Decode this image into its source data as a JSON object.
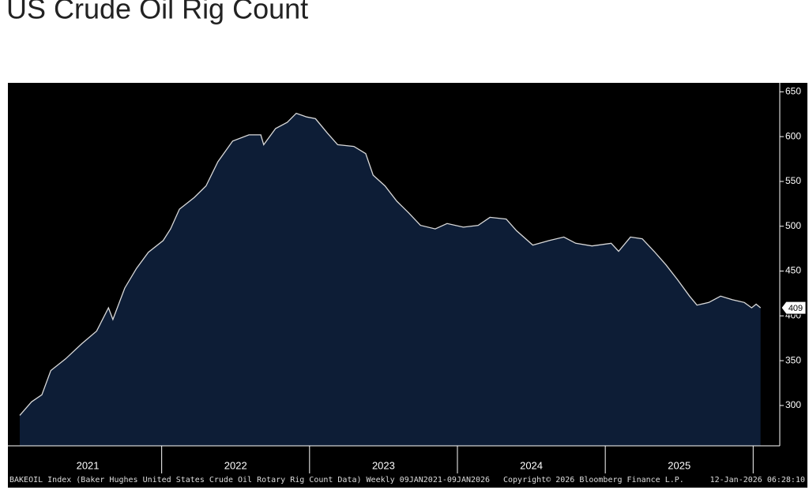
{
  "chart_data": {
    "type": "area",
    "title": "US Crude Oil Rig Count",
    "source": "BAKEOIL Index (Baker Hughes United States Crude Oil Rotary Rig Count Data) Weekly 09JAN2021-09JAN2026",
    "copyright": "Copyright© 2026 Bloomberg Finance L.P.",
    "timestamp": "12-Jan-2026 06:28:10",
    "x": [
      2021.04,
      2021.12,
      2021.19,
      2021.25,
      2021.35,
      2021.46,
      2021.56,
      2021.64,
      2021.67,
      2021.75,
      2021.83,
      2021.91,
      2022.01,
      2022.06,
      2022.12,
      2022.22,
      2022.3,
      2022.38,
      2022.48,
      2022.59,
      2022.67,
      2022.69,
      2022.77,
      2022.85,
      2022.91,
      2022.98,
      2023.04,
      2023.12,
      2023.19,
      2023.3,
      2023.38,
      2023.43,
      2023.51,
      2023.59,
      2023.67,
      2023.75,
      2023.85,
      2023.93,
      2024.04,
      2024.14,
      2024.22,
      2024.33,
      2024.4,
      2024.51,
      2024.62,
      2024.72,
      2024.8,
      2024.91,
      2025.04,
      2025.09,
      2025.17,
      2025.25,
      2025.33,
      2025.41,
      2025.49,
      2025.57,
      2025.62,
      2025.7,
      2025.78,
      2025.86,
      2025.94,
      2025.99,
      2026.02,
      2026.05
    ],
    "values": [
      289,
      304,
      312,
      339,
      352,
      369,
      383,
      409,
      396,
      431,
      453,
      471,
      484,
      497,
      519,
      532,
      545,
      572,
      595,
      602,
      602,
      591,
      609,
      616,
      626,
      622,
      620,
      604,
      591,
      589,
      581,
      557,
      545,
      528,
      515,
      501,
      497,
      503,
      499,
      501,
      510,
      508,
      495,
      479,
      484,
      488,
      481,
      478,
      481,
      472,
      488,
      486,
      472,
      457,
      440,
      422,
      412,
      415,
      422,
      418,
      415,
      409,
      413,
      409
    ],
    "color": "#0d1d36",
    "line_color": "#d9d9d9",
    "xlim": [
      2020.96,
      2026.18
    ],
    "xticks": [
      {
        "value": 2021.5,
        "label": "2021"
      },
      {
        "value": 2022.5,
        "label": "2022"
      },
      {
        "value": 2023.5,
        "label": "2023"
      },
      {
        "value": 2024.5,
        "label": "2024"
      },
      {
        "value": 2025.5,
        "label": "2025"
      }
    ],
    "ylim": [
      255,
      660
    ],
    "yticks": [
      300,
      350,
      400,
      450,
      500,
      550,
      600,
      650
    ]
  }
}
